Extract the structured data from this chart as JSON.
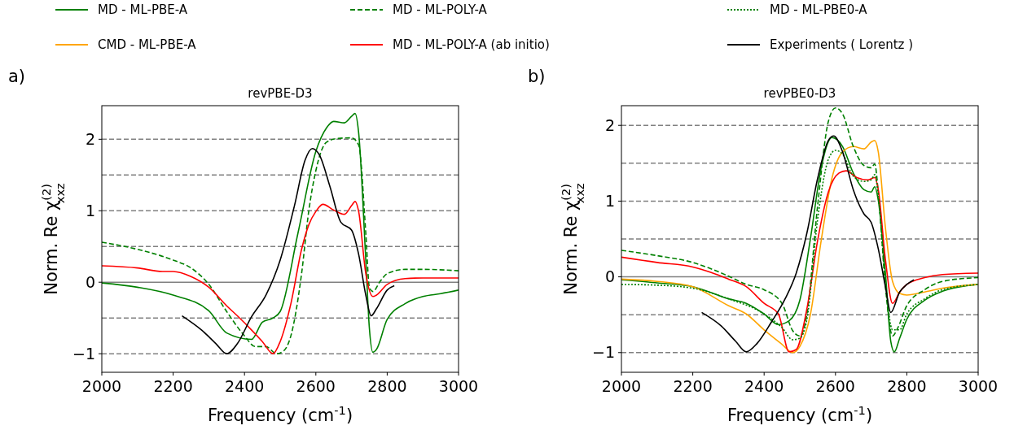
{
  "chart_data": [
    {
      "type": "line",
      "title": "revPBE-D3",
      "xlabel": "Frequency (cm$^{-1}$)",
      "ylabel": "Norm. Re χ$^{(2)}$$_{xxz}$",
      "annotations": [
        "a)"
      ],
      "xlim": [
        2000,
        3000
      ],
      "xticks": [
        2000,
        2200,
        2400,
        2600,
        2800,
        3000
      ],
      "ylim": [
        -1.26,
        2.47
      ],
      "yticks": [
        {
          "value": -1,
          "label": "−1"
        },
        0,
        1,
        2
      ],
      "legend": false,
      "grid": false,
      "ref_lines": [
        {
          "axis": "y",
          "value": -1,
          "color": "#808080",
          "line_style": "dashed"
        },
        {
          "axis": "y",
          "value": -0.5,
          "color": "#808080",
          "line_style": "dashed"
        },
        {
          "axis": "y",
          "value": 0,
          "color": "#808080",
          "line_style": "solid"
        },
        {
          "axis": "y",
          "value": 0.5,
          "color": "#808080",
          "line_style": "dashed"
        },
        {
          "axis": "y",
          "value": 1,
          "color": "#808080",
          "line_style": "dashed"
        },
        {
          "axis": "y",
          "value": 1.5,
          "color": "#808080",
          "line_style": "dashed"
        },
        {
          "axis": "y",
          "value": 2,
          "color": "#808080",
          "line_style": "dashed"
        }
      ],
      "series": [
        {
          "color": "#008000",
          "line_style": "solid",
          "x": [
            2000,
            2100,
            2200,
            2300,
            2350,
            2420,
            2450,
            2480,
            2500,
            2550,
            2600,
            2630,
            2650,
            2680,
            2700,
            2710,
            2720,
            2740,
            2750,
            2760,
            2770,
            2800,
            2850,
            2900,
            2950,
            3000
          ],
          "values": [
            -0.01,
            -0.07,
            -0.18,
            -0.4,
            -0.71,
            -0.8,
            -0.56,
            -0.5,
            -0.41,
            0.69,
            1.83,
            2.16,
            2.25,
            2.23,
            2.32,
            2.36,
            2.09,
            0.31,
            -0.64,
            -0.98,
            -0.94,
            -0.52,
            -0.3,
            -0.2,
            -0.16,
            -0.11
          ]
        },
        {
          "color": "#008000",
          "line_style": "dashed",
          "x": [
            2000,
            2100,
            2200,
            2250,
            2300,
            2350,
            2400,
            2430,
            2460,
            2490,
            2510,
            2530,
            2560,
            2580,
            2600,
            2630,
            2660,
            2700,
            2720,
            2740,
            2750,
            2760,
            2780,
            2800,
            2850,
            2900,
            3000
          ],
          "values": [
            0.56,
            0.46,
            0.31,
            0.2,
            -0.03,
            -0.41,
            -0.75,
            -0.9,
            -0.9,
            -1.0,
            -0.96,
            -0.75,
            0.12,
            0.99,
            1.56,
            1.96,
            2.01,
            2.02,
            1.92,
            0.69,
            -0.07,
            -0.13,
            0.01,
            0.12,
            0.18,
            0.18,
            0.16
          ]
        },
        {
          "color": "#ff0000",
          "line_style": "solid",
          "x": [
            2000,
            2100,
            2170,
            2200,
            2250,
            2300,
            2350,
            2380,
            2420,
            2450,
            2480,
            2500,
            2530,
            2560,
            2580,
            2600,
            2620,
            2650,
            2680,
            2700,
            2710,
            2720,
            2740,
            2760,
            2770,
            2800,
            2850,
            2900,
            3000
          ],
          "values": [
            0.23,
            0.2,
            0.15,
            0.15,
            0.08,
            -0.07,
            -0.33,
            -0.47,
            -0.67,
            -0.83,
            -1.0,
            -0.83,
            -0.3,
            0.46,
            0.8,
            0.99,
            1.09,
            1.01,
            0.95,
            1.07,
            1.13,
            0.99,
            0.12,
            -0.2,
            -0.18,
            -0.03,
            0.05,
            0.06,
            0.06
          ]
        },
        {
          "color": "#000000",
          "line_style": "solid",
          "x": [
            2225,
            2280,
            2320,
            2350,
            2380,
            2420,
            2460,
            2500,
            2540,
            2570,
            2590,
            2610,
            2640,
            2670,
            2700,
            2720,
            2740,
            2755,
            2770,
            2800,
            2820
          ],
          "values": [
            -0.47,
            -0.67,
            -0.86,
            -1.0,
            -0.86,
            -0.48,
            -0.18,
            0.31,
            1.07,
            1.71,
            1.87,
            1.78,
            1.33,
            0.84,
            0.73,
            0.39,
            -0.18,
            -0.47,
            -0.37,
            -0.11,
            -0.05
          ]
        }
      ]
    },
    {
      "type": "line",
      "title": "revPBE0-D3",
      "xlabel": "Frequency (cm$^{-1}$)",
      "ylabel": "Norm. Re χ$^{(2)}$$_{xxz}$",
      "annotations": [
        "b)"
      ],
      "xlim": [
        2000,
        3000
      ],
      "xticks": [
        2000,
        2200,
        2400,
        2600,
        2800,
        3000
      ],
      "ylim": [
        -1.26,
        2.26
      ],
      "yticks": [
        {
          "value": -1,
          "label": "−1"
        },
        0,
        1,
        2
      ],
      "legend": "top",
      "grid": false,
      "ref_lines": [
        {
          "axis": "y",
          "value": -1,
          "color": "#808080",
          "line_style": "dashed"
        },
        {
          "axis": "y",
          "value": -0.5,
          "color": "#808080",
          "line_style": "dashed"
        },
        {
          "axis": "y",
          "value": 0,
          "color": "#808080",
          "line_style": "solid"
        },
        {
          "axis": "y",
          "value": 0.5,
          "color": "#808080",
          "line_style": "dashed"
        },
        {
          "axis": "y",
          "value": 1,
          "color": "#808080",
          "line_style": "dashed"
        },
        {
          "axis": "y",
          "value": 1.5,
          "color": "#808080",
          "line_style": "dashed"
        },
        {
          "axis": "y",
          "value": 2,
          "color": "#808080",
          "line_style": "dashed"
        }
      ],
      "series": [
        {
          "name": "MD - ML-PBE-A",
          "color": "#008000",
          "line_style": "solid",
          "x": [
            2000,
            2100,
            2200,
            2300,
            2350,
            2400,
            2440,
            2470,
            2500,
            2530,
            2560,
            2590,
            2620,
            2650,
            2680,
            2700,
            2710,
            2720,
            2740,
            2755,
            2765,
            2780,
            2800,
            2850,
            2900,
            3000
          ],
          "values": [
            -0.04,
            -0.08,
            -0.13,
            -0.29,
            -0.35,
            -0.49,
            -0.63,
            -0.58,
            -0.31,
            0.51,
            1.44,
            1.84,
            1.72,
            1.37,
            1.15,
            1.12,
            1.19,
            1.01,
            0.05,
            -0.85,
            -0.99,
            -0.81,
            -0.56,
            -0.31,
            -0.19,
            -0.1
          ]
        },
        {
          "name": "CMD - ML-PBE-A",
          "color": "#ffa500",
          "line_style": "solid",
          "x": [
            2000,
            2100,
            2200,
            2300,
            2350,
            2400,
            2450,
            2480,
            2500,
            2530,
            2560,
            2590,
            2620,
            2650,
            2680,
            2700,
            2710,
            2720,
            2740,
            2760,
            2780,
            2800,
            2850,
            2900,
            3000
          ],
          "values": [
            -0.03,
            -0.06,
            -0.13,
            -0.38,
            -0.49,
            -0.7,
            -0.89,
            -1.0,
            -0.92,
            -0.49,
            0.48,
            1.3,
            1.65,
            1.72,
            1.69,
            1.78,
            1.8,
            1.65,
            0.65,
            -0.06,
            -0.22,
            -0.24,
            -0.2,
            -0.15,
            -0.1
          ]
        },
        {
          "name": "MD - ML-POLY-A",
          "color": "#008000",
          "line_style": "dashed",
          "x": [
            2000,
            2100,
            2200,
            2300,
            2350,
            2400,
            2450,
            2480,
            2500,
            2520,
            2550,
            2580,
            2600,
            2620,
            2650,
            2680,
            2700,
            2710,
            2720,
            2740,
            2760,
            2775,
            2800,
            2850,
            2900,
            3000
          ],
          "values": [
            0.35,
            0.28,
            0.19,
            0.01,
            -0.1,
            -0.17,
            -0.35,
            -0.71,
            -0.78,
            -0.49,
            0.94,
            2.05,
            2.23,
            2.15,
            1.72,
            1.47,
            1.44,
            1.49,
            1.12,
            -0.13,
            -0.78,
            -0.67,
            -0.38,
            -0.17,
            -0.06,
            -0.01
          ]
        },
        {
          "name": "MD - ML-POLY-A (ab initio)",
          "color": "#ff0000",
          "line_style": "solid",
          "x": [
            2000,
            2100,
            2200,
            2250,
            2300,
            2350,
            2400,
            2440,
            2470,
            2490,
            2520,
            2550,
            2580,
            2610,
            2630,
            2660,
            2690,
            2710,
            2720,
            2740,
            2760,
            2780,
            2800,
            2850,
            2900,
            3000
          ],
          "values": [
            0.26,
            0.19,
            0.13,
            0.06,
            -0.03,
            -0.13,
            -0.35,
            -0.49,
            -0.99,
            -0.96,
            -0.42,
            0.48,
            1.12,
            1.37,
            1.4,
            1.31,
            1.28,
            1.31,
            1.15,
            0.23,
            -0.35,
            -0.2,
            -0.1,
            -0.01,
            0.03,
            0.05
          ]
        },
        {
          "name": "MD - ML-PBE0-A",
          "color": "#008000",
          "line_style": "dotted",
          "x": [
            2000,
            2100,
            2200,
            2300,
            2400,
            2450,
            2480,
            2500,
            2520,
            2550,
            2580,
            2600,
            2620,
            2650,
            2680,
            2700,
            2710,
            2720,
            2740,
            2760,
            2780,
            2800,
            2850,
            2900,
            3000
          ],
          "values": [
            -0.1,
            -0.11,
            -0.15,
            -0.29,
            -0.49,
            -0.67,
            -0.83,
            -0.81,
            -0.56,
            0.76,
            1.55,
            1.67,
            1.62,
            1.33,
            1.26,
            1.28,
            1.35,
            1.08,
            -0.06,
            -0.7,
            -0.7,
            -0.49,
            -0.29,
            -0.17,
            -0.1
          ]
        },
        {
          "name": "Experiments ( Lorentz )",
          "color": "#000000",
          "line_style": "solid",
          "x": [
            2225,
            2280,
            2320,
            2350,
            2380,
            2420,
            2460,
            2490,
            2520,
            2550,
            2580,
            2595,
            2620,
            2650,
            2680,
            2700,
            2720,
            2740,
            2755,
            2780,
            2800,
            2820
          ],
          "values": [
            -0.47,
            -0.65,
            -0.85,
            -0.99,
            -0.88,
            -0.6,
            -0.28,
            0.05,
            0.58,
            1.3,
            1.8,
            1.86,
            1.65,
            1.15,
            0.83,
            0.72,
            0.37,
            -0.13,
            -0.47,
            -0.2,
            -0.1,
            -0.04
          ]
        }
      ]
    }
  ]
}
